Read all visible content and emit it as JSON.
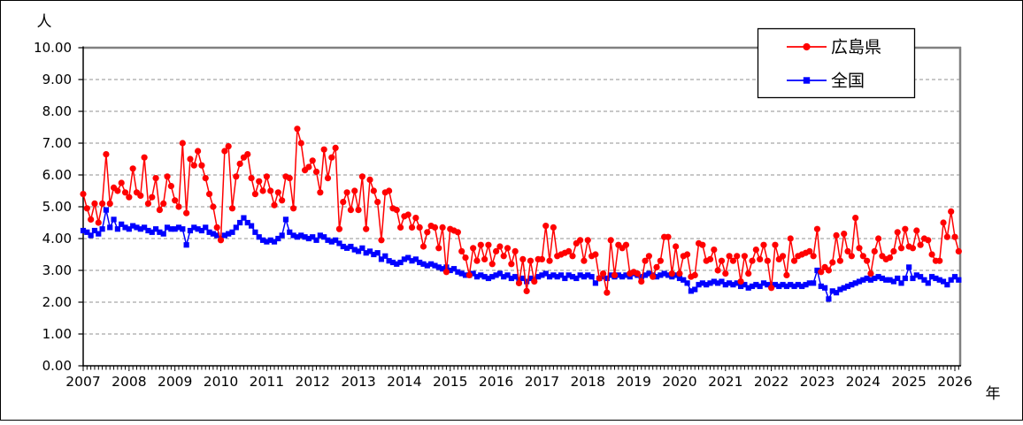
{
  "y_axis": {
    "unit": "人",
    "tick_labels": [
      "0.00",
      "1.00",
      "2.00",
      "3.00",
      "4.00",
      "5.00",
      "6.00",
      "7.00",
      "8.00",
      "9.00",
      "10.00"
    ]
  },
  "x_axis": {
    "unit": "年",
    "tick_labels": [
      "2007",
      "2008",
      "2009",
      "2010",
      "2011",
      "2012",
      "2013",
      "2014",
      "2015",
      "2016",
      "2017",
      "2018",
      "2019",
      "2020",
      "2021",
      "2022",
      "2023",
      "2024",
      "2025",
      "2026"
    ]
  },
  "legend": {
    "items": [
      {
        "label": "広島県",
        "color": "#ff0000",
        "marker": "circle"
      },
      {
        "label": "全国",
        "color": "#0000ff",
        "marker": "square"
      }
    ]
  },
  "colors": {
    "hiroshima": "#ff0000",
    "zenkoku": "#0000ff",
    "grid": "#909090",
    "plot_border": "#808080",
    "axis": "#000000"
  },
  "chart_data": {
    "type": "line",
    "x_start": "2007-01",
    "x_end": "2026-02",
    "x_frequency": "monthly",
    "ylim": [
      0,
      10
    ],
    "grid": "horizontal-dashed",
    "legend_position": "top-right-inside",
    "series": [
      {
        "name": "広島県",
        "color": "#ff0000",
        "marker": "circle",
        "values": [
          5.4,
          4.95,
          4.6,
          5.1,
          4.5,
          5.1,
          6.65,
          5.1,
          5.6,
          5.5,
          5.75,
          5.45,
          5.3,
          6.2,
          5.45,
          5.35,
          6.55,
          5.1,
          5.3,
          5.9,
          4.9,
          5.1,
          5.95,
          5.65,
          5.2,
          5.0,
          7.0,
          4.8,
          6.5,
          6.3,
          6.75,
          6.3,
          5.9,
          5.4,
          5.0,
          4.35,
          3.95,
          6.75,
          6.9,
          4.95,
          5.95,
          6.35,
          6.55,
          6.65,
          5.9,
          5.4,
          5.8,
          5.5,
          5.95,
          5.5,
          5.05,
          5.45,
          5.2,
          5.95,
          5.9,
          4.95,
          7.45,
          7.0,
          6.15,
          6.25,
          6.45,
          6.1,
          5.45,
          6.8,
          5.9,
          6.55,
          6.85,
          4.3,
          5.15,
          5.45,
          4.9,
          5.5,
          4.9,
          5.95,
          4.3,
          5.85,
          5.5,
          5.15,
          3.95,
          5.45,
          5.5,
          4.95,
          4.9,
          4.35,
          4.7,
          4.75,
          4.35,
          4.65,
          4.35,
          3.75,
          4.2,
          4.4,
          4.35,
          3.7,
          4.35,
          2.95,
          4.3,
          4.25,
          4.2,
          3.6,
          3.4,
          2.85,
          3.7,
          3.3,
          3.8,
          3.35,
          3.8,
          3.2,
          3.6,
          3.75,
          3.45,
          3.7,
          3.2,
          3.6,
          2.6,
          3.35,
          2.35,
          3.3,
          2.65,
          3.35,
          3.35,
          4.4,
          3.3,
          4.35,
          3.45,
          3.5,
          3.55,
          3.6,
          3.45,
          3.85,
          3.95,
          3.3,
          3.95,
          3.45,
          3.5,
          2.75,
          2.9,
          2.3,
          3.95,
          2.85,
          3.8,
          3.7,
          3.8,
          2.9,
          2.95,
          2.9,
          2.65,
          3.3,
          3.45,
          2.8,
          3.1,
          3.3,
          4.05,
          4.05,
          2.9,
          3.75,
          2.9,
          3.45,
          3.5,
          2.8,
          2.85,
          3.85,
          3.8,
          3.3,
          3.35,
          3.65,
          3.0,
          3.3,
          2.9,
          3.45,
          3.3,
          3.45,
          2.65,
          3.45,
          2.9,
          3.3,
          3.65,
          3.35,
          3.8,
          3.3,
          2.45,
          3.8,
          3.35,
          3.45,
          2.85,
          4.0,
          3.3,
          3.45,
          3.5,
          3.55,
          3.6,
          3.45,
          4.3,
          2.95,
          3.1,
          3.0,
          3.25,
          4.1,
          3.3,
          4.15,
          3.6,
          3.45,
          4.65,
          3.7,
          3.45,
          3.3,
          2.9,
          3.6,
          4.0,
          3.45,
          3.35,
          3.4,
          3.6,
          4.2,
          3.7,
          4.3,
          3.75,
          3.7,
          4.25,
          3.8,
          4.0,
          3.95,
          3.5,
          3.3,
          3.3,
          4.5,
          4.05,
          4.85,
          4.05,
          3.6
        ]
      },
      {
        "name": "全国",
        "color": "#0000ff",
        "marker": "square",
        "values": [
          4.25,
          4.2,
          4.1,
          4.25,
          4.15,
          4.3,
          4.9,
          4.35,
          4.6,
          4.3,
          4.45,
          4.35,
          4.3,
          4.4,
          4.35,
          4.3,
          4.35,
          4.25,
          4.2,
          4.3,
          4.2,
          4.15,
          4.35,
          4.3,
          4.3,
          4.35,
          4.3,
          3.8,
          4.25,
          4.35,
          4.3,
          4.25,
          4.35,
          4.2,
          4.15,
          4.1,
          4.0,
          4.1,
          4.15,
          4.2,
          4.35,
          4.5,
          4.65,
          4.5,
          4.4,
          4.2,
          4.05,
          3.95,
          3.9,
          3.95,
          3.9,
          4.0,
          4.1,
          4.6,
          4.2,
          4.1,
          4.05,
          4.1,
          4.05,
          4.0,
          4.05,
          3.95,
          4.1,
          4.05,
          3.95,
          3.9,
          3.95,
          3.85,
          3.75,
          3.7,
          3.75,
          3.65,
          3.6,
          3.7,
          3.55,
          3.6,
          3.5,
          3.55,
          3.35,
          3.45,
          3.3,
          3.25,
          3.2,
          3.25,
          3.35,
          3.4,
          3.3,
          3.35,
          3.25,
          3.2,
          3.15,
          3.2,
          3.15,
          3.1,
          3.05,
          3.1,
          3.0,
          3.05,
          2.95,
          2.9,
          2.85,
          2.85,
          2.9,
          2.8,
          2.85,
          2.8,
          2.75,
          2.8,
          2.85,
          2.9,
          2.8,
          2.85,
          2.75,
          2.8,
          2.7,
          2.75,
          2.65,
          2.75,
          2.7,
          2.8,
          2.85,
          2.9,
          2.8,
          2.85,
          2.8,
          2.85,
          2.75,
          2.85,
          2.8,
          2.75,
          2.85,
          2.8,
          2.85,
          2.8,
          2.6,
          2.75,
          2.8,
          2.75,
          2.85,
          2.8,
          2.85,
          2.8,
          2.85,
          2.8,
          2.9,
          2.85,
          2.8,
          2.85,
          2.9,
          2.85,
          2.8,
          2.85,
          2.9,
          2.85,
          2.8,
          2.85,
          2.75,
          2.7,
          2.6,
          2.35,
          2.4,
          2.55,
          2.6,
          2.55,
          2.6,
          2.65,
          2.6,
          2.65,
          2.55,
          2.6,
          2.55,
          2.6,
          2.5,
          2.55,
          2.45,
          2.5,
          2.55,
          2.5,
          2.6,
          2.55,
          2.5,
          2.55,
          2.5,
          2.55,
          2.5,
          2.55,
          2.5,
          2.55,
          2.5,
          2.55,
          2.6,
          2.6,
          3.0,
          2.5,
          2.45,
          2.1,
          2.35,
          2.3,
          2.4,
          2.45,
          2.5,
          2.55,
          2.6,
          2.65,
          2.7,
          2.75,
          2.7,
          2.75,
          2.8,
          2.75,
          2.7,
          2.7,
          2.65,
          2.75,
          2.6,
          2.75,
          3.1,
          2.75,
          2.85,
          2.8,
          2.7,
          2.6,
          2.8,
          2.75,
          2.7,
          2.65,
          2.55,
          2.7,
          2.8,
          2.7
        ]
      }
    ]
  }
}
